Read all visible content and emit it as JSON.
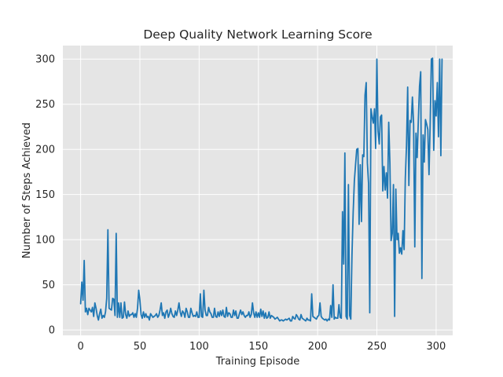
{
  "chart_data": {
    "type": "line",
    "title": "Deep Quality Network Learning Score",
    "xlabel": "Training Episode",
    "ylabel": "Number of Steps Achieved",
    "xlim": [
      -15,
      314
    ],
    "ylim": [
      -6,
      315
    ],
    "xticks": [
      0,
      50,
      100,
      150,
      200,
      250,
      300
    ],
    "yticks": [
      0,
      50,
      100,
      150,
      200,
      250,
      300
    ],
    "grid": true,
    "background": "#e5e5e5",
    "line_color": "#1f77b4",
    "series": [
      {
        "values": [
          29,
          53,
          33,
          77,
          20,
          24,
          17,
          24,
          22,
          20,
          25,
          15,
          30,
          24,
          16,
          11,
          18,
          23,
          13,
          16,
          14,
          20,
          35,
          111,
          24,
          23,
          22,
          35,
          34,
          16,
          107,
          14,
          30,
          14,
          30,
          13,
          14,
          31,
          17,
          13,
          21,
          15,
          17,
          17,
          19,
          14,
          18,
          14,
          24,
          44,
          33,
          17,
          13,
          20,
          14,
          18,
          14,
          15,
          11,
          18,
          16,
          14,
          15,
          16,
          18,
          14,
          16,
          22,
          30,
          16,
          19,
          13,
          20,
          22,
          14,
          18,
          24,
          18,
          15,
          14,
          21,
          16,
          22,
          30,
          20,
          15,
          21,
          19,
          14,
          24,
          20,
          14,
          14,
          24,
          19,
          15,
          16,
          15,
          20,
          14,
          14,
          40,
          15,
          14,
          44,
          22,
          16,
          16,
          25,
          20,
          18,
          14,
          14,
          24,
          15,
          14,
          20,
          15,
          21,
          16,
          22,
          15,
          14,
          25,
          15,
          19,
          18,
          14,
          14,
          22,
          16,
          21,
          13,
          13,
          18,
          22,
          17,
          20,
          16,
          14,
          16,
          16,
          20,
          14,
          17,
          30,
          19,
          14,
          20,
          14,
          19,
          14,
          23,
          15,
          21,
          13,
          19,
          13,
          14,
          20,
          13,
          16,
          15,
          14,
          12,
          13,
          14,
          12,
          10,
          11,
          11,
          10,
          11,
          12,
          11,
          12,
          13,
          10,
          10,
          15,
          13,
          12,
          17,
          15,
          12,
          11,
          17,
          13,
          12,
          11,
          10,
          13,
          11,
          11,
          10,
          40,
          15,
          14,
          13,
          12,
          15,
          16,
          30,
          15,
          13,
          12,
          11,
          12,
          10,
          12,
          11,
          27,
          14,
          50,
          12,
          14,
          13,
          13,
          28,
          14,
          13,
          131,
          73,
          196,
          15,
          12,
          161,
          16,
          12,
          83,
          130,
          165,
          183,
          200,
          201,
          117,
          183,
          120,
          194,
          192,
          260,
          274,
          185,
          162,
          19,
          245,
          236,
          229,
          245,
          201,
          300,
          220,
          206,
          236,
          238,
          154,
          181,
          155,
          174,
          146,
          230,
          185,
          99,
          107,
          161,
          15,
          156,
          100,
          107,
          85,
          91,
          84,
          110,
          89,
          168,
          204,
          269,
          160,
          232,
          230,
          258,
          228,
          92,
          218,
          191,
          232,
          270,
          286,
          57,
          216,
          186,
          233,
          228,
          222,
          172,
          229,
          300,
          301,
          199,
          254,
          237,
          274,
          214,
          300,
          193,
          300
        ]
      }
    ]
  }
}
